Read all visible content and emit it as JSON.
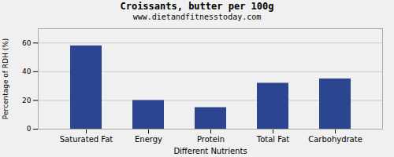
{
  "chart_data": {
    "type": "bar",
    "title": "Croissants, butter per 100g",
    "subtitle": "www.dietandfitnesstoday.com",
    "xlabel": "Different Nutrients",
    "ylabel": "Percentage of RDH (%)",
    "categories": [
      "Saturated Fat",
      "Energy",
      "Protein",
      "Total Fat",
      "Carbohydrate"
    ],
    "values": [
      58,
      20,
      15,
      32,
      35
    ],
    "color": "#2b4590",
    "ylim": [
      0,
      70
    ],
    "yticks": [
      0,
      20,
      40,
      60
    ],
    "grid": true
  }
}
